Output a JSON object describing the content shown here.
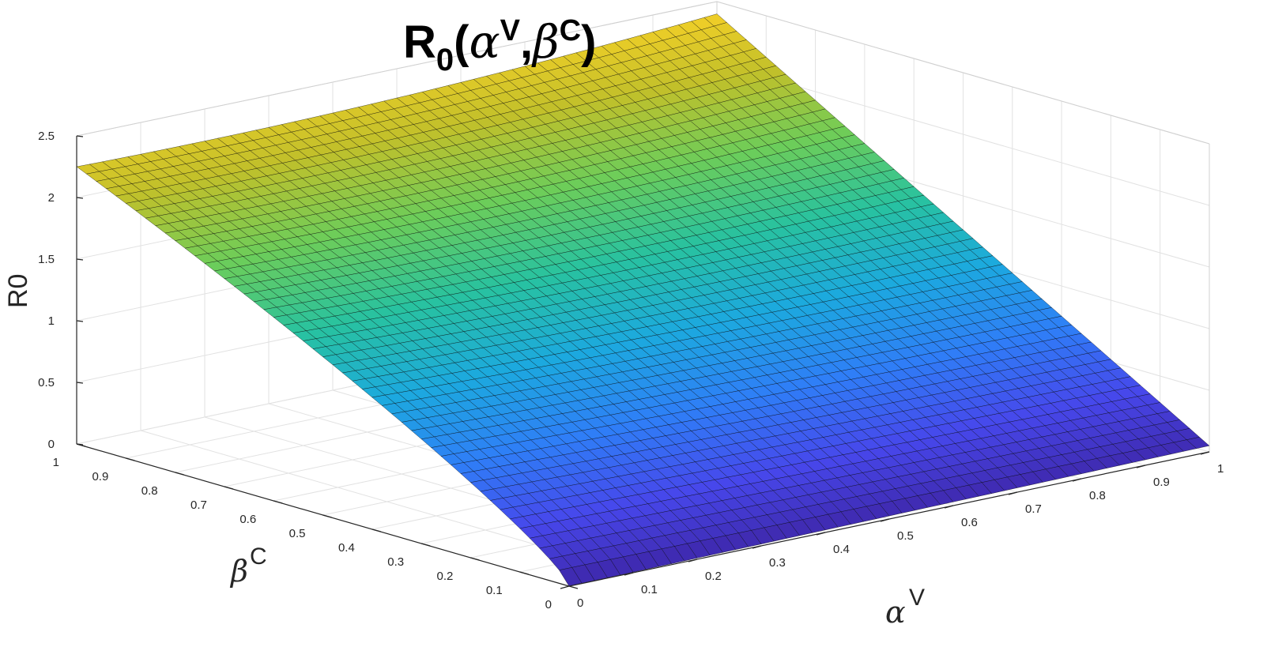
{
  "chart_data": {
    "type": "surface",
    "title": {
      "main": "R",
      "main_sub": "0",
      "open": "(",
      "alpha": "α",
      "alpha_sup": "V",
      "comma": ",",
      "beta": "β",
      "beta_sup": "C",
      "close": ")"
    },
    "xlabel": {
      "symbol": "α",
      "sup": "V"
    },
    "ylabel": {
      "symbol": "β",
      "sup": "C"
    },
    "zlabel": "R0",
    "xlim": [
      0,
      1
    ],
    "ylim": [
      0,
      1
    ],
    "zlim": [
      0,
      2.5
    ],
    "x_ticks": [
      "0",
      "0.1",
      "0.2",
      "0.3",
      "0.4",
      "0.5",
      "0.6",
      "0.7",
      "0.8",
      "0.9",
      "1"
    ],
    "y_ticks": [
      "0",
      "0.1",
      "0.2",
      "0.3",
      "0.4",
      "0.5",
      "0.6",
      "0.7",
      "0.8",
      "0.9",
      "1"
    ],
    "z_ticks": [
      "0",
      "0.5",
      "1",
      "1.5",
      "2",
      "2.5"
    ],
    "corner_values": [
      {
        "alpha": 0,
        "beta": 0,
        "R0": 0
      },
      {
        "alpha": 1,
        "beta": 0,
        "R0": 0.05
      },
      {
        "alpha": 0,
        "beta": 1,
        "R0": 2.25
      },
      {
        "alpha": 1,
        "beta": 1,
        "R0": 2.4
      }
    ],
    "colormap": [
      "#3e26a8",
      "#4747eb",
      "#2f7ef7",
      "#1ca9df",
      "#28c2a0",
      "#6ccd5a",
      "#c2c02a",
      "#f9d127"
    ],
    "grid": true,
    "mesh_color": "#000000"
  }
}
